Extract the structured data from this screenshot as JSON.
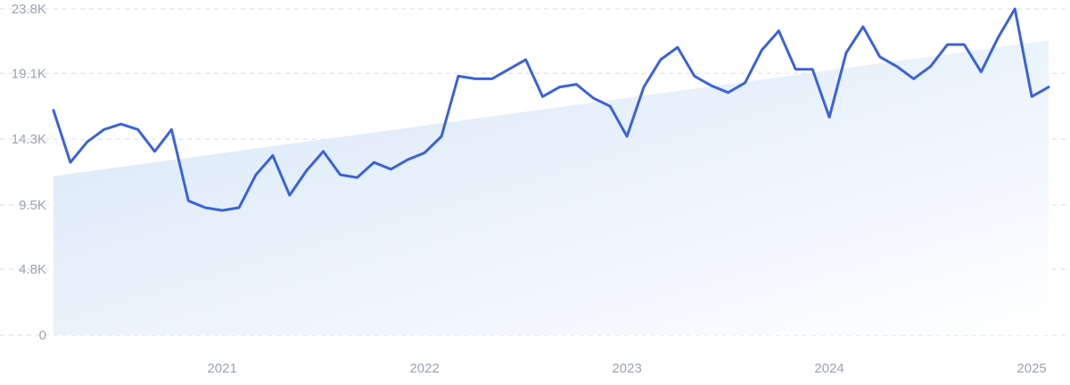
{
  "chart_data": {
    "type": "line",
    "x_start": "2020-03",
    "x_end": "2025-01",
    "y_tick_labels": [
      "0",
      "4.8K",
      "9.5K",
      "14.3K",
      "19.1K",
      "23.8K"
    ],
    "y_tick_values": [
      0,
      4800,
      9500,
      14300,
      19100,
      23800
    ],
    "ylim": [
      0,
      23800
    ],
    "x_tick_labels": [
      "2021",
      "2022",
      "2023",
      "2024",
      "2025"
    ],
    "grid": true,
    "series": [
      {
        "values": [
          16400,
          12600,
          14100,
          15000,
          15400,
          15000,
          13400,
          15000,
          9800,
          9300,
          9100,
          9300,
          11700,
          13100,
          10200,
          12000,
          13400,
          11700,
          11500,
          12600,
          12100,
          12800,
          13300,
          14500,
          18900,
          18700,
          18700,
          19400,
          20100,
          17400,
          18100,
          18300,
          17300,
          16700,
          14500,
          18100,
          20100,
          21000,
          18900,
          18200,
          17700,
          18400,
          20800,
          22200,
          19400,
          19400,
          15900,
          20600,
          22500,
          20300,
          19600,
          18700,
          19600,
          21200,
          21200,
          19200,
          21700,
          23800,
          17400,
          18100
        ]
      }
    ],
    "trend": {
      "start": 11600,
      "end": 21500
    },
    "colors": {
      "line": "#3a63d8",
      "area_top": "#d6e6f8",
      "area_bottom": "#ffffff",
      "grid": "#d9dee6",
      "tick_text": "#9aa3ad"
    }
  }
}
